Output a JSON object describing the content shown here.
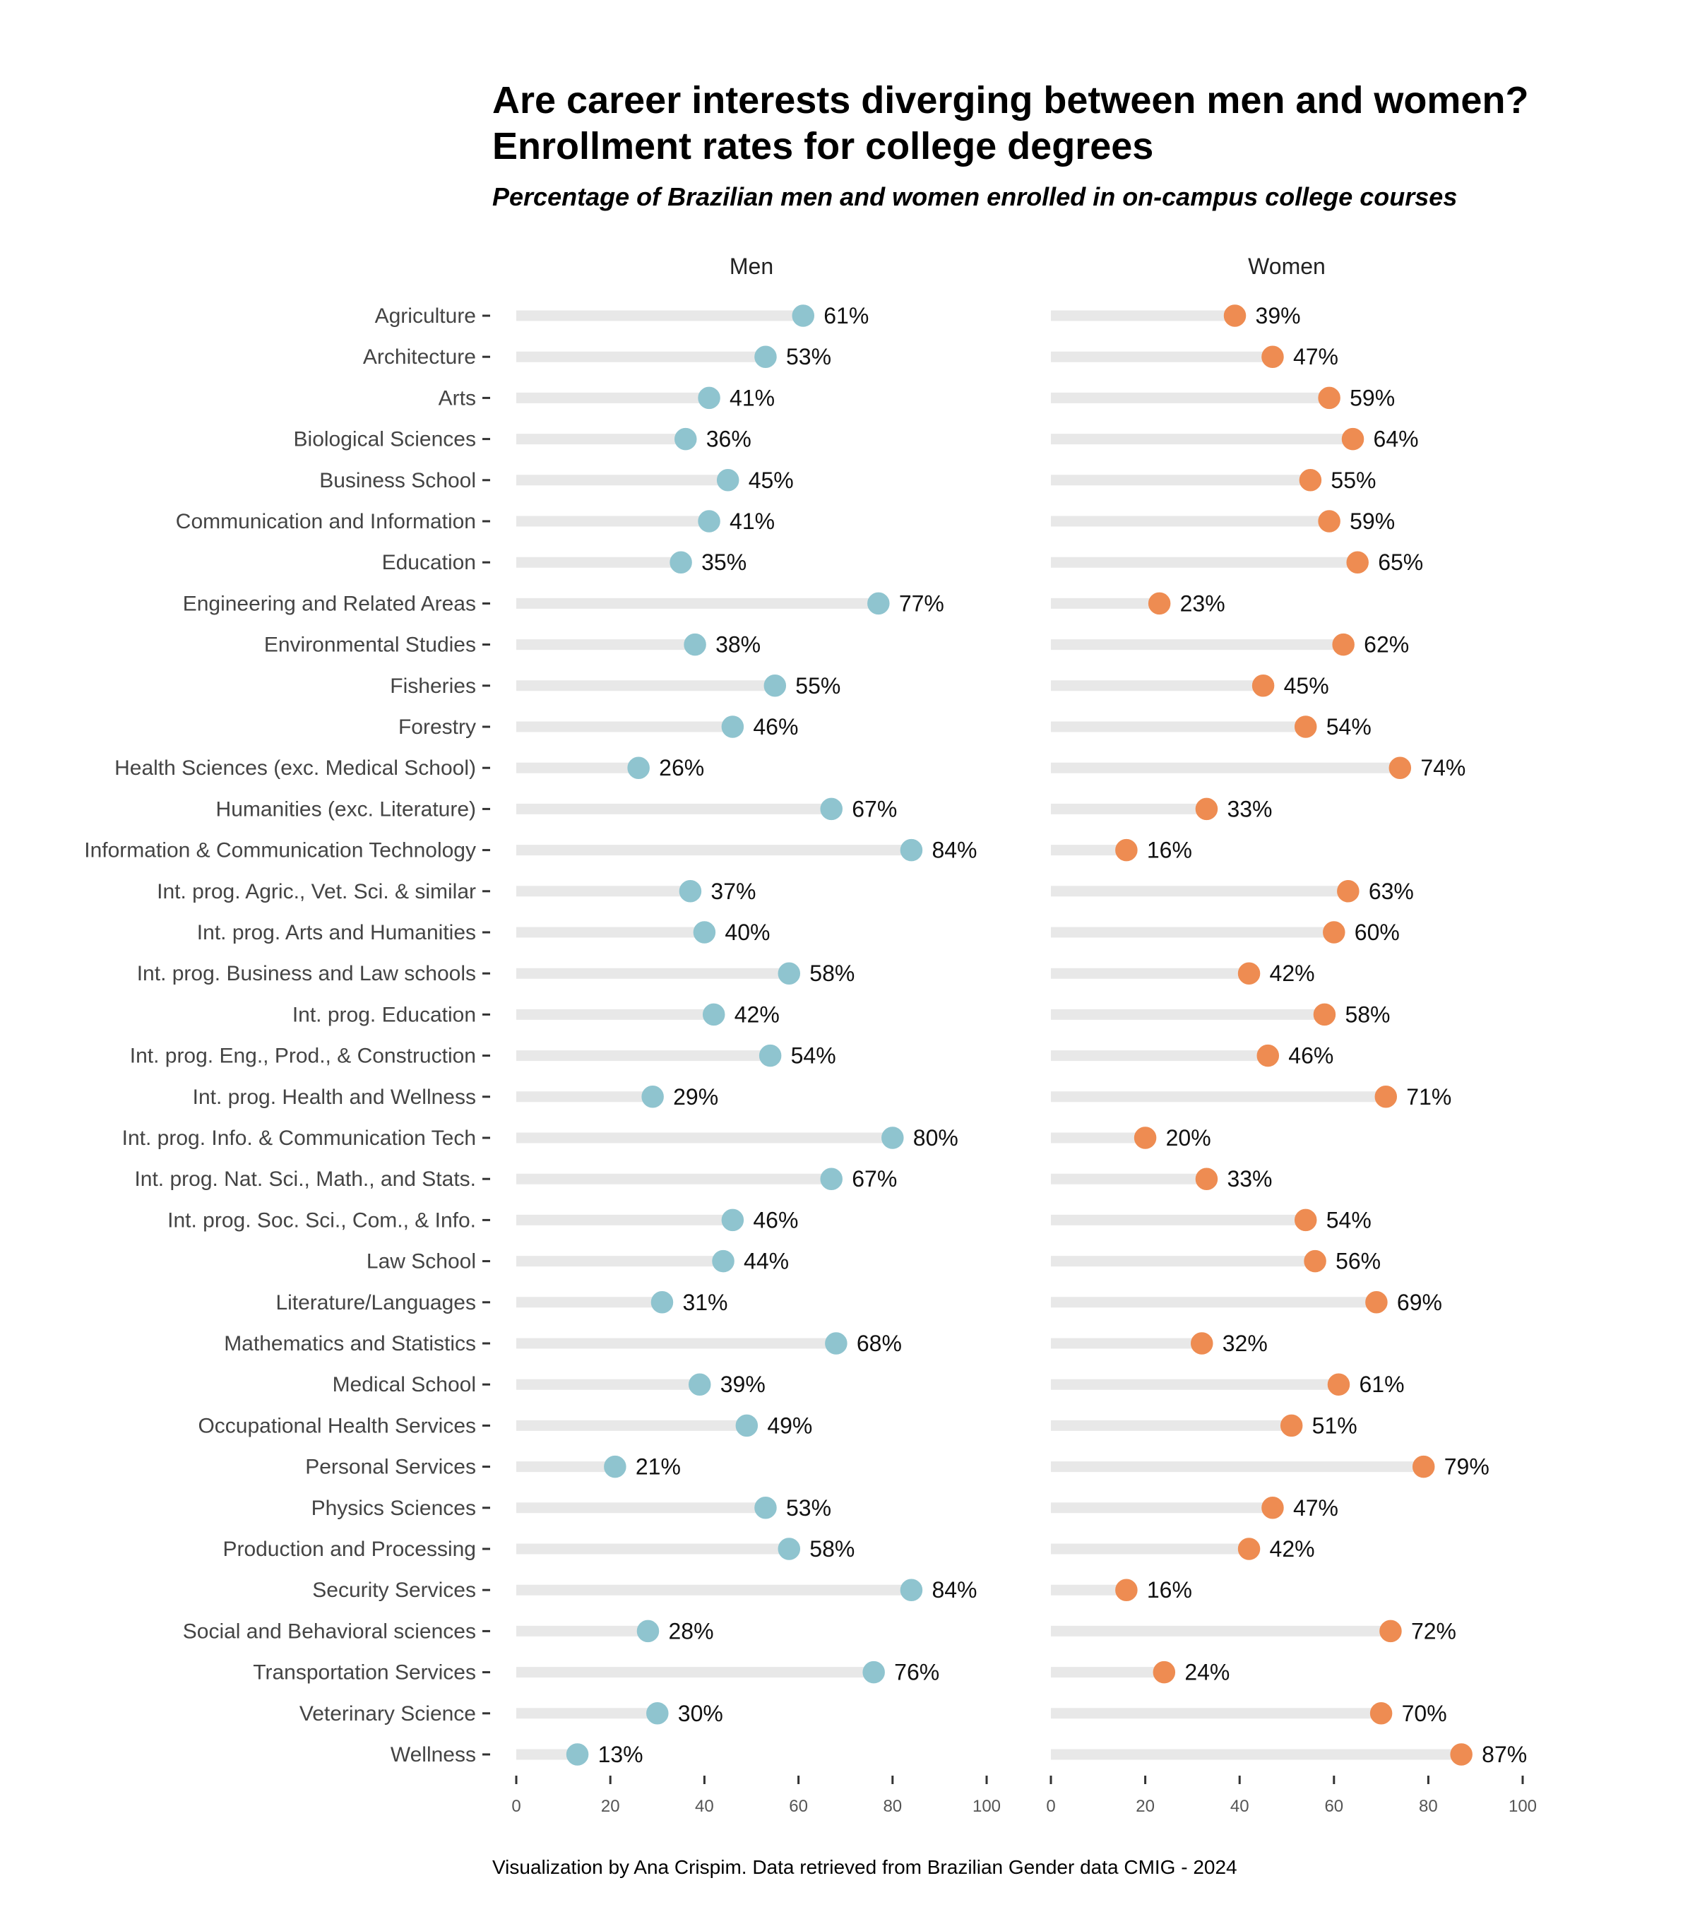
{
  "chart_data": {
    "type": "dot",
    "title_line1": "Are career interests diverging between men and women?",
    "title_line2": "Enrollment rates for college degrees",
    "subtitle": "Percentage of Brazilian men and women enrolled in on-campus college courses",
    "caption": "Visualization by Ana Crispim. Data retrieved from Brazilian Gender data CMIG - 2024",
    "xlim": [
      0,
      100
    ],
    "xticks": [
      "0",
      "20",
      "40",
      "60",
      "80",
      "100"
    ],
    "categories": [
      "Agriculture",
      "Architecture",
      "Arts",
      "Biological Sciences",
      "Business School",
      "Communication and Information",
      "Education",
      "Engineering and Related Areas",
      "Environmental Studies",
      "Fisheries",
      "Forestry",
      "Health Sciences (exc. Medical School)",
      "Humanities (exc. Literature)",
      "Information & Communication Technology",
      "Int. prog. Agric., Vet. Sci. & similar",
      "Int. prog. Arts and Humanities",
      "Int. prog. Business and Law schools",
      "Int. prog. Education",
      "Int. prog. Eng., Prod., & Construction",
      "Int. prog. Health and Wellness",
      "Int. prog. Info. & Communication Tech",
      "Int. prog. Nat. Sci., Math., and Stats.",
      "Int. prog. Soc. Sci., Com., & Info.",
      "Law School",
      "Literature/Languages",
      "Mathematics and Statistics",
      "Medical School",
      "Occupational Health Services",
      "Personal Services",
      "Physics Sciences",
      "Production and Processing",
      "Security Services",
      "Social and Behavioral sciences",
      "Transportation Services",
      "Veterinary Science",
      "Wellness"
    ],
    "series": [
      {
        "name": "Men",
        "color": "#8fc4cf",
        "values": [
          61,
          53,
          41,
          36,
          45,
          41,
          35,
          77,
          38,
          55,
          46,
          26,
          67,
          84,
          37,
          40,
          58,
          42,
          54,
          29,
          80,
          67,
          46,
          44,
          31,
          68,
          39,
          49,
          21,
          53,
          58,
          84,
          28,
          76,
          30,
          13
        ],
        "labels": [
          "61%",
          "53%",
          "41%",
          "36%",
          "45%",
          "41%",
          "35%",
          "77%",
          "38%",
          "55%",
          "46%",
          "26%",
          "67%",
          "84%",
          "37%",
          "40%",
          "58%",
          "42%",
          "54%",
          "29%",
          "80%",
          "67%",
          "46%",
          "44%",
          "31%",
          "68%",
          "39%",
          "49%",
          "21%",
          "53%",
          "58%",
          "84%",
          "28%",
          "76%",
          "30%",
          "13%"
        ]
      },
      {
        "name": "Women",
        "color": "#ee8c52",
        "values": [
          39,
          47,
          59,
          64,
          55,
          59,
          65,
          23,
          62,
          45,
          54,
          74,
          33,
          16,
          63,
          60,
          42,
          58,
          46,
          71,
          20,
          33,
          54,
          56,
          69,
          32,
          61,
          51,
          79,
          47,
          42,
          16,
          72,
          24,
          70,
          87
        ],
        "labels": [
          "39%",
          "47%",
          "59%",
          "64%",
          "55%",
          "59%",
          "65%",
          "23%",
          "62%",
          "45%",
          "54%",
          "74%",
          "33%",
          "16%",
          "63%",
          "60%",
          "42%",
          "58%",
          "46%",
          "71%",
          "20%",
          "33%",
          "54%",
          "56%",
          "69%",
          "32%",
          "61%",
          "51%",
          "79%",
          "47%",
          "42%",
          "16%",
          "72%",
          "24%",
          "70%",
          "87%"
        ]
      }
    ],
    "bar_color": "#e8e8e8",
    "grid": false
  }
}
